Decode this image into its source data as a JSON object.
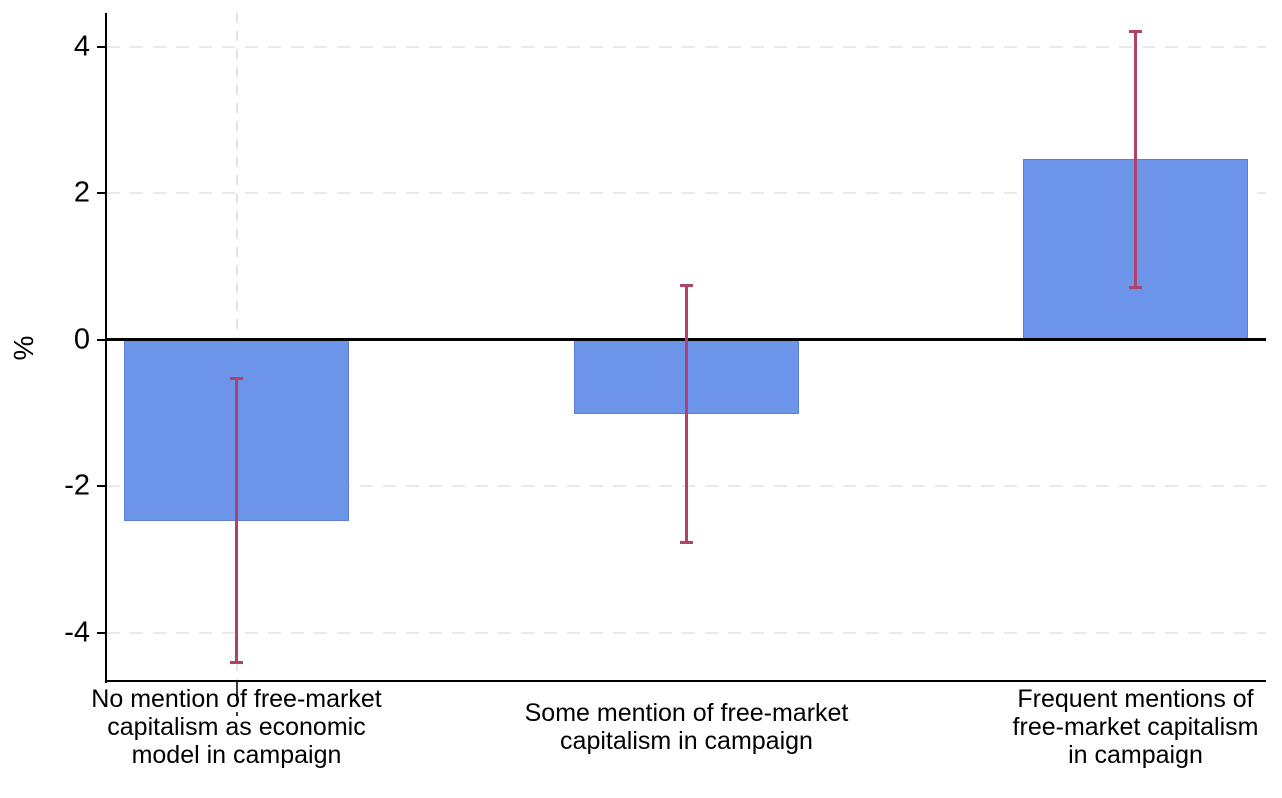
{
  "chart_data": {
    "type": "bar",
    "title": "",
    "xlabel": "",
    "ylabel": "%",
    "categories": [
      "No mention of free-market\ncapitalism as economic\nmodel in campaign",
      "Some mention of free-market\ncapitalism in campaign",
      "Frequent mentions of\nfree-market capitalism\nin campaign"
    ],
    "values": [
      -2.47,
      -1.01,
      2.46
    ],
    "error_bars": {
      "low": [
        -4.41,
        -2.77,
        0.7
      ],
      "high": [
        -0.52,
        0.74,
        4.22
      ]
    },
    "yticks": [
      -4,
      -2,
      0,
      2,
      4
    ],
    "ylim": [
      -4.66,
      4.46
    ],
    "legend": "none",
    "grid": "horizontal-dashed",
    "zero_line": true,
    "vline_category_index": 0,
    "bar_color": "#6c94e8",
    "bar_border_color": "#5b7dd6",
    "error_bar_color": "#b1426b",
    "axis_color": "#000000",
    "gridline_color": "#eaeaea",
    "vline_color": "#e4e4e4",
    "text_color": "#000000"
  }
}
